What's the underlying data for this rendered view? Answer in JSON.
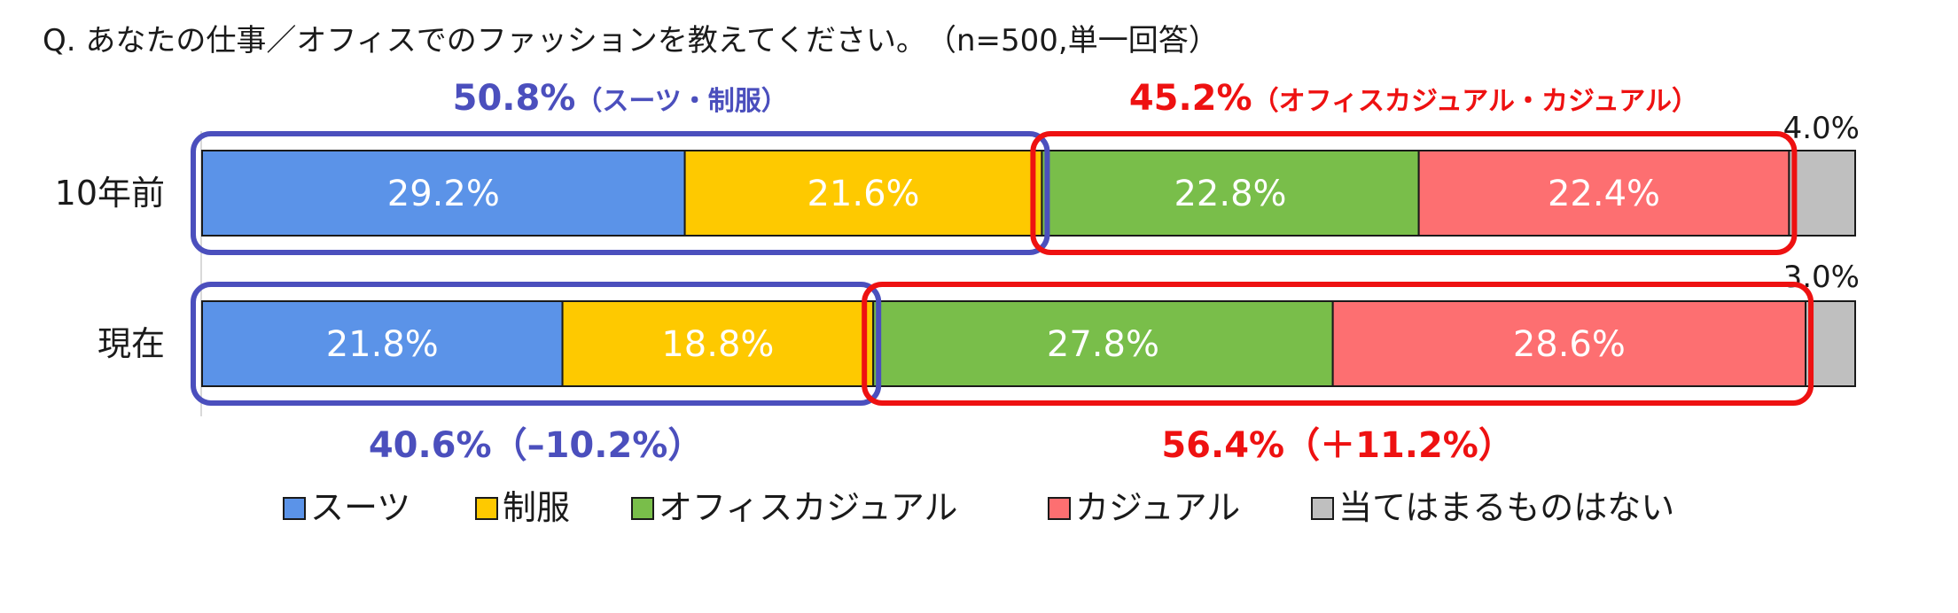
{
  "question": "Q. あなたの仕事／オフィスでのファッションを教えてください。　（n=500,単一回答）",
  "chart_data": {
    "type": "bar",
    "orientation": "horizontal",
    "stacked": true,
    "categories": [
      "10年前",
      "現在"
    ],
    "series": [
      {
        "name": "スーツ",
        "color": "#5b93e8",
        "values": [
          29.2,
          21.8
        ],
        "labels": [
          "29.2%",
          "21.8%"
        ]
      },
      {
        "name": "制服",
        "color": "#fec900",
        "values": [
          21.6,
          18.8
        ],
        "labels": [
          "21.6%",
          "18.8%"
        ]
      },
      {
        "name": "オフィスカジュアル",
        "color": "#79be4a",
        "values": [
          22.8,
          27.8
        ],
        "labels": [
          "22.8%",
          "27.8%"
        ]
      },
      {
        "name": "カジュアル",
        "color": "#fd6f71",
        "values": [
          22.4,
          28.6
        ],
        "labels": [
          "22.4%",
          "28.6%"
        ]
      },
      {
        "name": "当てはまるものはない",
        "color": "#bfbfbf",
        "values": [
          4.0,
          3.0
        ],
        "labels": [
          "4.0%",
          "3.0%"
        ]
      }
    ],
    "xlim": [
      0,
      100
    ],
    "legend_position": "bottom",
    "group_annotations": [
      {
        "text": "50.8%",
        "sub": "（スーツ・制服）",
        "color": "#4b4fbd",
        "row": 0,
        "from_series": 0,
        "to_series": 1
      },
      {
        "text": "45.2%",
        "sub": "（オフィスカジュアル・カジュアル）",
        "color": "#ee1111",
        "row": 0,
        "from_series": 2,
        "to_series": 3
      },
      {
        "text": "40.6%（–10.2%）",
        "sub": "",
        "color": "#4b4fbd",
        "row": 1,
        "from_series": 0,
        "to_series": 1
      },
      {
        "text": "56.4%（＋11.2%）",
        "sub": "",
        "color": "#ee1111",
        "row": 1,
        "from_series": 2,
        "to_series": 3
      }
    ]
  }
}
